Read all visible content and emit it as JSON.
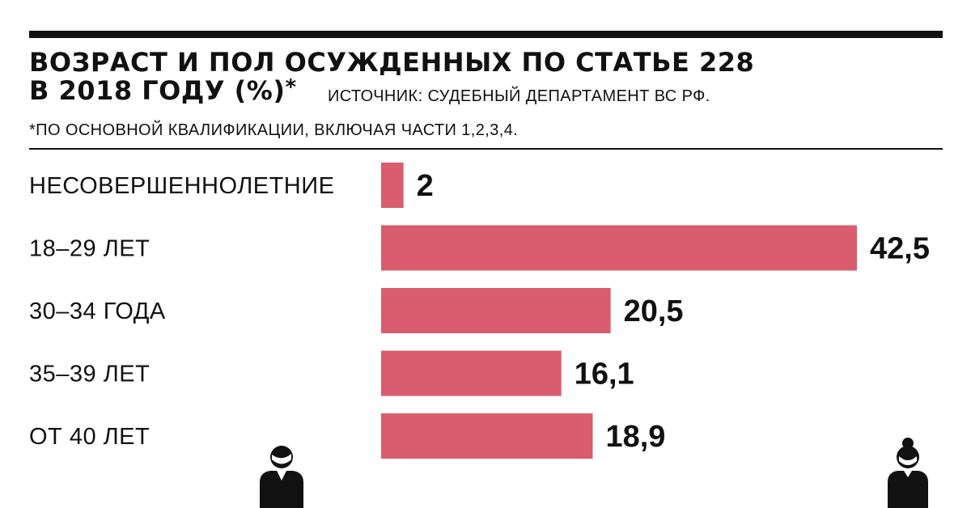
{
  "header": {
    "title_line1": "ВОЗРАСТ И ПОЛ ОСУЖДЕННЫХ ПО СТАТЬЕ 228",
    "title_line2": "В 2018 ГОДУ (%)",
    "title_asterisk": "*",
    "source": "ИСТОЧНИК: СУДЕБНЫЙ ДЕПАРТАМЕНТ ВС РФ.",
    "note": "*ПО ОСНОВНОЙ КВАЛИФИКАЦИИ, ВКЛЮЧАЯ ЧАСТИ 1,2,3,4."
  },
  "colors": {
    "bar": "#d95d6e",
    "text": "#111111",
    "rule": "#111111"
  },
  "icons": [
    "male-figure-icon",
    "female-figure-icon"
  ],
  "chart_data": {
    "type": "bar",
    "orientation": "horizontal",
    "categories": [
      "НЕСОВЕРШЕННОЛЕТНИЕ",
      "18–29 ЛЕТ",
      "30–34 ГОДА",
      "35–39 ЛЕТ",
      "ОТ 40 ЛЕТ"
    ],
    "values": [
      2,
      42.5,
      20.5,
      16.1,
      18.9
    ],
    "value_labels": [
      "2",
      "42,5",
      "20,5",
      "16,1",
      "18,9"
    ],
    "xlim": [
      0,
      42.5
    ],
    "grid": false,
    "legend": "none"
  }
}
